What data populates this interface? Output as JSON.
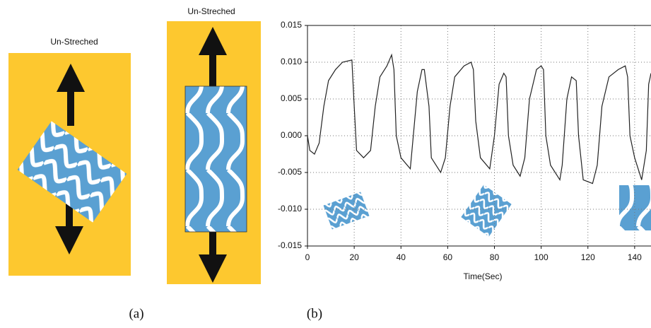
{
  "figure": {
    "label_a": "Un-Streched",
    "label_b": "Un-Streched",
    "panel_a": "(a)",
    "panel_b": "(b)"
  },
  "chart_data": {
    "type": "line",
    "xlabel": "Time(Sec)",
    "x": [
      0,
      1,
      3,
      5,
      7,
      9,
      12,
      15,
      19,
      20,
      21,
      24,
      27,
      29,
      31,
      34,
      36,
      37,
      38,
      40,
      44,
      45,
      47,
      49,
      50,
      52,
      53,
      57,
      59,
      61,
      63,
      67,
      70,
      71,
      72,
      74,
      78,
      80,
      82,
      84,
      85,
      86,
      88,
      91,
      93,
      95,
      98,
      100,
      101,
      102,
      104,
      108,
      109,
      111,
      113,
      115,
      116,
      118,
      122,
      124,
      126,
      129,
      133,
      136,
      137,
      138,
      140,
      143,
      145,
      146,
      147
    ],
    "series": [
      {
        "color": "#222222",
        "values": [
          0.0,
          -0.002,
          -0.0025,
          -0.001,
          0.004,
          0.0075,
          0.009,
          0.01,
          0.0103,
          0.004,
          -0.002,
          -0.003,
          -0.002,
          0.004,
          0.008,
          0.0095,
          0.011,
          0.009,
          0.0,
          -0.003,
          -0.0045,
          -0.001,
          0.006,
          0.009,
          0.009,
          0.004,
          -0.003,
          -0.005,
          -0.003,
          0.004,
          0.008,
          0.0095,
          0.01,
          0.009,
          0.002,
          -0.003,
          -0.0045,
          0.0,
          0.007,
          0.0085,
          0.008,
          0.0,
          -0.004,
          -0.0055,
          -0.003,
          0.005,
          0.009,
          0.0095,
          0.009,
          0.0,
          -0.004,
          -0.006,
          -0.004,
          0.005,
          0.008,
          0.0075,
          0.0,
          -0.006,
          -0.0065,
          -0.004,
          0.004,
          0.008,
          0.009,
          0.0095,
          0.008,
          0.0,
          -0.003,
          -0.006,
          -0.002,
          0.007,
          0.0085
        ]
      }
    ],
    "xlim": [
      0,
      147
    ],
    "xticks": [
      0,
      20,
      40,
      60,
      80,
      100,
      120,
      140
    ],
    "ylim": [
      -0.015,
      0.015
    ],
    "yticks": [
      -0.015,
      {
        "value": -0.01,
        "label": "-0.010"
      },
      -0.005,
      {
        "value": 0,
        "label": "0.000"
      },
      0.005,
      {
        "value": 0.01,
        "label": "0.010"
      },
      0.015
    ],
    "grid": true
  }
}
